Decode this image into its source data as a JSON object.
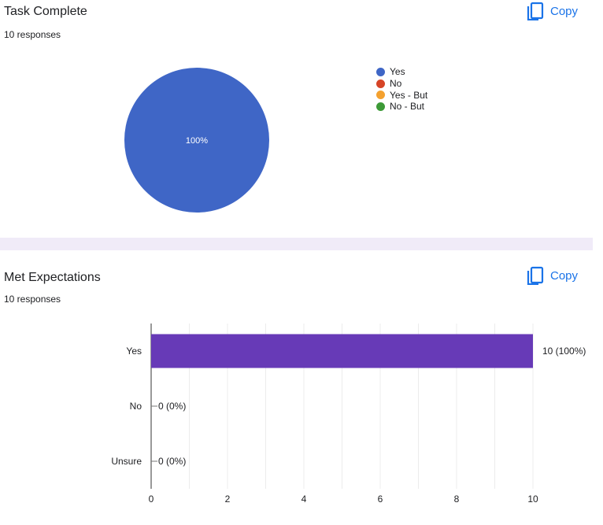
{
  "charts": [
    {
      "title": "Task Complete",
      "responses": "10 responses",
      "copy_label": "Copy"
    },
    {
      "title": "Met Expectations",
      "responses": "10 responses",
      "copy_label": "Copy"
    }
  ],
  "colors": {
    "accent": "#1a73e8",
    "pie_yes": "#3f66c6",
    "pie_no": "#d64427",
    "pie_yes_but": "#f4a12f",
    "pie_no_but": "#3d9a37",
    "bar": "#673ab7"
  },
  "chart_data": [
    {
      "type": "pie",
      "title": "Task Complete",
      "categories": [
        "Yes",
        "No",
        "Yes - But",
        "No - But"
      ],
      "values": [
        10,
        0,
        0,
        0
      ],
      "slice_labels": [
        "100%"
      ],
      "legend_position": "right"
    },
    {
      "type": "bar",
      "orientation": "horizontal",
      "title": "Met Expectations",
      "categories": [
        "Yes",
        "No",
        "Unsure"
      ],
      "values": [
        10,
        0,
        0
      ],
      "value_labels": [
        "10 (100%)",
        "0 (0%)",
        "0 (0%)"
      ],
      "x_ticks": [
        0,
        2,
        4,
        6,
        8,
        10
      ],
      "xlim": [
        0,
        10
      ],
      "grid": true
    }
  ]
}
